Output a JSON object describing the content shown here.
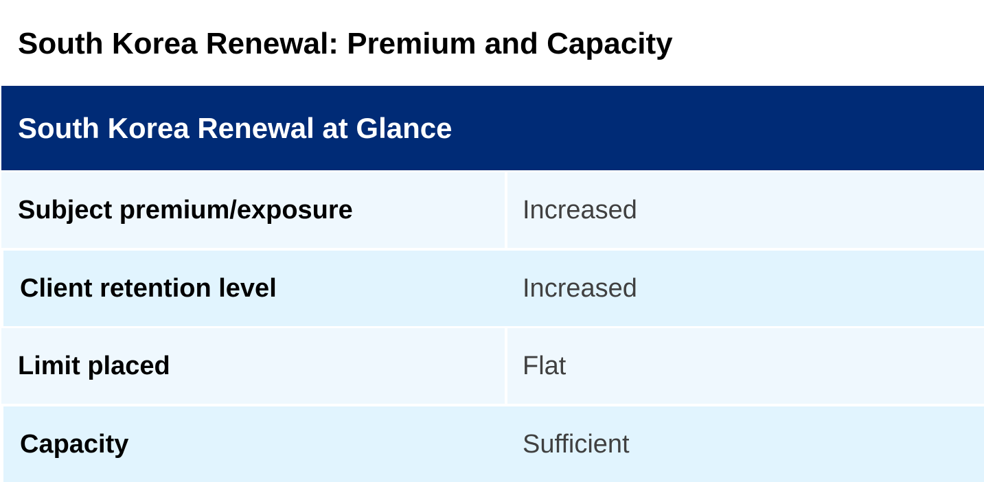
{
  "title": "South Korea Renewal: Premium and Capacity",
  "table": {
    "header": "South Korea Renewal at Glance",
    "rows": [
      {
        "label": "Subject premium/exposure",
        "value": "Increased"
      },
      {
        "label": "Client retention level",
        "value": "Increased"
      },
      {
        "label": "Limit placed",
        "value": "Flat"
      },
      {
        "label": "Capacity",
        "value": "Sufficient"
      }
    ]
  },
  "colors": {
    "header_bg": "#002b76",
    "row_light": "#eff8fe",
    "row_alt": "#e1f4fe"
  }
}
